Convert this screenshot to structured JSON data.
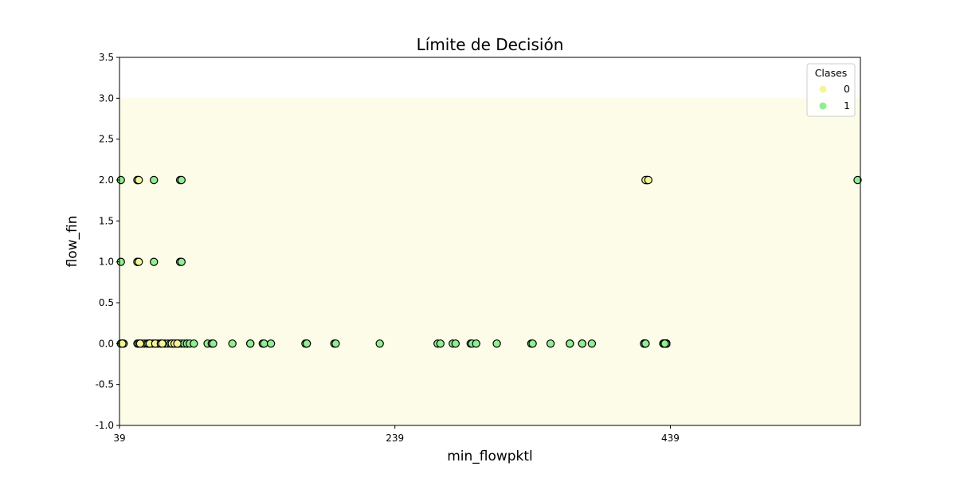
{
  "chart_data": {
    "type": "scatter",
    "title": "Límite de Decisión",
    "xlabel": "min_flowpktl",
    "ylabel": "flow_fin",
    "xlim": [
      39,
      577
    ],
    "ylim": [
      -1.0,
      3.5
    ],
    "xticks": [
      39,
      239,
      439
    ],
    "yticks": [
      -1.0,
      -0.5,
      0.0,
      0.5,
      1.0,
      1.5,
      2.0,
      2.5,
      3.0,
      3.5
    ],
    "grid": false,
    "decision_region": {
      "x": [
        39,
        577
      ],
      "y": [
        -1.0,
        3.0
      ],
      "color": "#fcfce8"
    },
    "legend": {
      "title": "Clases",
      "position": "top-right"
    },
    "series": [
      {
        "name": "1",
        "color": "#90ee90",
        "points": [
          [
            40,
            0
          ],
          [
            41,
            0
          ],
          [
            42,
            0
          ],
          [
            52,
            0
          ],
          [
            53,
            0
          ],
          [
            55,
            0
          ],
          [
            57,
            0
          ],
          [
            59,
            0
          ],
          [
            61,
            0
          ],
          [
            63,
            0
          ],
          [
            65,
            0
          ],
          [
            67,
            0
          ],
          [
            69,
            0
          ],
          [
            72,
            0
          ],
          [
            74,
            0
          ],
          [
            78,
            0
          ],
          [
            80,
            0
          ],
          [
            82,
            0
          ],
          [
            84,
            0
          ],
          [
            86,
            0
          ],
          [
            88,
            0
          ],
          [
            88,
            0
          ],
          [
            90,
            0
          ],
          [
            93,
            0
          ],
          [
            103,
            0
          ],
          [
            106,
            0
          ],
          [
            107,
            0
          ],
          [
            121,
            0
          ],
          [
            134,
            0
          ],
          [
            134,
            0
          ],
          [
            143,
            0
          ],
          [
            144,
            0
          ],
          [
            149,
            0
          ],
          [
            175,
            0
          ],
          [
            174,
            0
          ],
          [
            175,
            0
          ],
          [
            195,
            0
          ],
          [
            196,
            0
          ],
          [
            228,
            0
          ],
          [
            270,
            0
          ],
          [
            272,
            0
          ],
          [
            281,
            0
          ],
          [
            283,
            0
          ],
          [
            294,
            0
          ],
          [
            295,
            0
          ],
          [
            298,
            0
          ],
          [
            313,
            0
          ],
          [
            338,
            0
          ],
          [
            339,
            0
          ],
          [
            352,
            0
          ],
          [
            366,
            0
          ],
          [
            366,
            0
          ],
          [
            375,
            0
          ],
          [
            375,
            0
          ],
          [
            420,
            0
          ],
          [
            420,
            0
          ],
          [
            420,
            0
          ],
          [
            420,
            0
          ],
          [
            421,
            0
          ],
          [
            434,
            0
          ],
          [
            434,
            0
          ],
          [
            436,
            0
          ],
          [
            434,
            0
          ],
          [
            435,
            0
          ],
          [
            436,
            0
          ],
          [
            435,
            0
          ],
          [
            436,
            0
          ],
          [
            435,
            0
          ],
          [
            436,
            0
          ],
          [
            436,
            0
          ],
          [
            435,
            0
          ],
          [
            436,
            0
          ],
          [
            436,
            0
          ],
          [
            435,
            0
          ],
          [
            436,
            0
          ],
          [
            436,
            0
          ],
          [
            436,
            0
          ],
          [
            436,
            0
          ],
          [
            436,
            0
          ],
          [
            436,
            0
          ],
          [
            436,
            0
          ],
          [
            436,
            0
          ],
          [
            436,
            0
          ],
          [
            435,
            0
          ],
          [
            436,
            0
          ],
          [
            436,
            0
          ],
          [
            436,
            0
          ],
          [
            435,
            0
          ],
          [
            436,
            0
          ],
          [
            434,
            0
          ],
          [
            434,
            0
          ],
          [
            434,
            0
          ],
          [
            436,
            0
          ],
          [
            436,
            0
          ],
          [
            436,
            0
          ],
          [
            436,
            0
          ],
          [
            436,
            0
          ],
          [
            435,
            0
          ],
          [
            436,
            0
          ],
          [
            436,
            0
          ],
          [
            436,
            0
          ],
          [
            436,
            0
          ],
          [
            436,
            0
          ],
          [
            435,
            0
          ],
          [
            436,
            0
          ],
          [
            436,
            0
          ],
          [
            436,
            0
          ],
          [
            436,
            0
          ],
          [
            436,
            0
          ],
          [
            435,
            0
          ],
          [
            436,
            0
          ],
          [
            436,
            0
          ],
          [
            436,
            0
          ],
          [
            436,
            0
          ],
          [
            436,
            0
          ],
          [
            435,
            0
          ],
          [
            436,
            0
          ],
          [
            436,
            0
          ],
          [
            436,
            0
          ],
          [
            436,
            0
          ],
          [
            436,
            0
          ],
          [
            435,
            0
          ],
          [
            436,
            0
          ],
          [
            436,
            0
          ],
          [
            436,
            0
          ],
          [
            436,
            0
          ],
          [
            436,
            0
          ],
          [
            435,
            0
          ],
          [
            436,
            0
          ],
          [
            436,
            0
          ],
          [
            436,
            0
          ],
          [
            436,
            0
          ],
          [
            436,
            0
          ],
          [
            435,
            0
          ],
          [
            436,
            0
          ],
          [
            436,
            0
          ],
          [
            436,
            0
          ],
          [
            436,
            0
          ],
          [
            436,
            0
          ],
          [
            435,
            0
          ],
          [
            436,
            0
          ],
          [
            436,
            0
          ],
          [
            436,
            0
          ],
          [
            436,
            0
          ],
          [
            436,
            0
          ],
          [
            435,
            0
          ],
          [
            436,
            0
          ],
          [
            436,
            0
          ],
          [
            436,
            0
          ],
          [
            436,
            0
          ],
          [
            436,
            0
          ],
          [
            435,
            0
          ],
          [
            436,
            0
          ],
          [
            436,
            0
          ],
          [
            436,
            0
          ],
          [
            436,
            0
          ],
          [
            436,
            0
          ],
          [
            435,
            0
          ],
          [
            436,
            0
          ],
          [
            436,
            0
          ],
          [
            436,
            0
          ],
          [
            436,
            0
          ],
          [
            436,
            0
          ],
          [
            435,
            0
          ],
          [
            436,
            0
          ],
          [
            436,
            0
          ],
          [
            436,
            0
          ],
          [
            436,
            0
          ],
          [
            436,
            0
          ],
          [
            435,
            0
          ],
          [
            436,
            0
          ],
          [
            436,
            0
          ],
          [
            436,
            0
          ],
          [
            436,
            0
          ],
          [
            436,
            0
          ],
          [
            435,
            0
          ],
          [
            436,
            0
          ],
          [
            436,
            0
          ],
          [
            436,
            0
          ],
          [
            436,
            0
          ],
          [
            436,
            0
          ],
          [
            435,
            0
          ],
          [
            436,
            0
          ],
          [
            436,
            0
          ],
          [
            436,
            0
          ],
          [
            436,
            0
          ],
          [
            436,
            0
          ],
          [
            435,
            0
          ],
          [
            436,
            0
          ],
          [
            436,
            0
          ],
          [
            436,
            0
          ],
          [
            436,
            0
          ],
          [
            436,
            0
          ],
          [
            435,
            0
          ],
          [
            436,
            0
          ],
          [
            436,
            0
          ],
          [
            436,
            0
          ],
          [
            436,
            0
          ],
          [
            436,
            0
          ],
          [
            435,
            0
          ],
          [
            436,
            0
          ],
          [
            436,
            0
          ],
          [
            436,
            0
          ],
          [
            436,
            0
          ],
          [
            436,
            0
          ],
          [
            435,
            0
          ],
          [
            436,
            0
          ],
          [
            436,
            0
          ],
          [
            436,
            0
          ],
          [
            436,
            0
          ],
          [
            436,
            0
          ],
          [
            435,
            0
          ],
          [
            436,
            0
          ],
          [
            436,
            0
          ],
          [
            436,
            0
          ],
          [
            436,
            0
          ],
          [
            436,
            0
          ],
          [
            435,
            0
          ],
          [
            436,
            0
          ],
          [
            436,
            0
          ],
          [
            436,
            0
          ],
          [
            436,
            0
          ],
          [
            436,
            0
          ],
          [
            435,
            0
          ],
          [
            436,
            0
          ],
          [
            436,
            0
          ],
          [
            436,
            0
          ],
          [
            436,
            0
          ],
          [
            436,
            0
          ],
          [
            435,
            0
          ],
          [
            436,
            0
          ],
          [
            436,
            0
          ],
          [
            436,
            0
          ],
          [
            436,
            0
          ],
          [
            436,
            0
          ],
          [
            435,
            0
          ],
          [
            436,
            0
          ],
          [
            436,
            0
          ],
          [
            436,
            0
          ],
          [
            436,
            0
          ],
          [
            436,
            0
          ],
          [
            435,
            0
          ],
          [
            436,
            0
          ],
          [
            436,
            0
          ],
          [
            436,
            0
          ],
          [
            436,
            0
          ],
          [
            436,
            0
          ],
          [
            435,
            0
          ],
          [
            436,
            0
          ],
          [
            436,
            0
          ],
          [
            436,
            0
          ],
          [
            436,
            0
          ],
          [
            436,
            0
          ],
          [
            435,
            0
          ],
          [
            420,
            0
          ],
          [
            421,
            0
          ],
          [
            382,
            0
          ],
          [
            40,
            1
          ],
          [
            52,
            1
          ],
          [
            64,
            1
          ],
          [
            83,
            1
          ],
          [
            84,
            1
          ],
          [
            40,
            2
          ],
          [
            52,
            2
          ],
          [
            64,
            2
          ],
          [
            83,
            2
          ],
          [
            84,
            2
          ],
          [
            422,
            2
          ],
          [
            575,
            2
          ]
        ]
      },
      {
        "name": "0",
        "color": "#f5f599",
        "points": [
          [
            41,
            0
          ],
          [
            54,
            0
          ],
          [
            60,
            0
          ],
          [
            61,
            0
          ],
          [
            65,
            0
          ],
          [
            69,
            0
          ],
          [
            70,
            0
          ],
          [
            76,
            0
          ],
          [
            77,
            0
          ],
          [
            79,
            0
          ],
          [
            81,
            0
          ],
          [
            52,
            1
          ],
          [
            53,
            1
          ],
          [
            52,
            2
          ],
          [
            53,
            2
          ],
          [
            422,
            2
          ],
          [
            421,
            2
          ],
          [
            423,
            2
          ]
        ]
      }
    ]
  }
}
